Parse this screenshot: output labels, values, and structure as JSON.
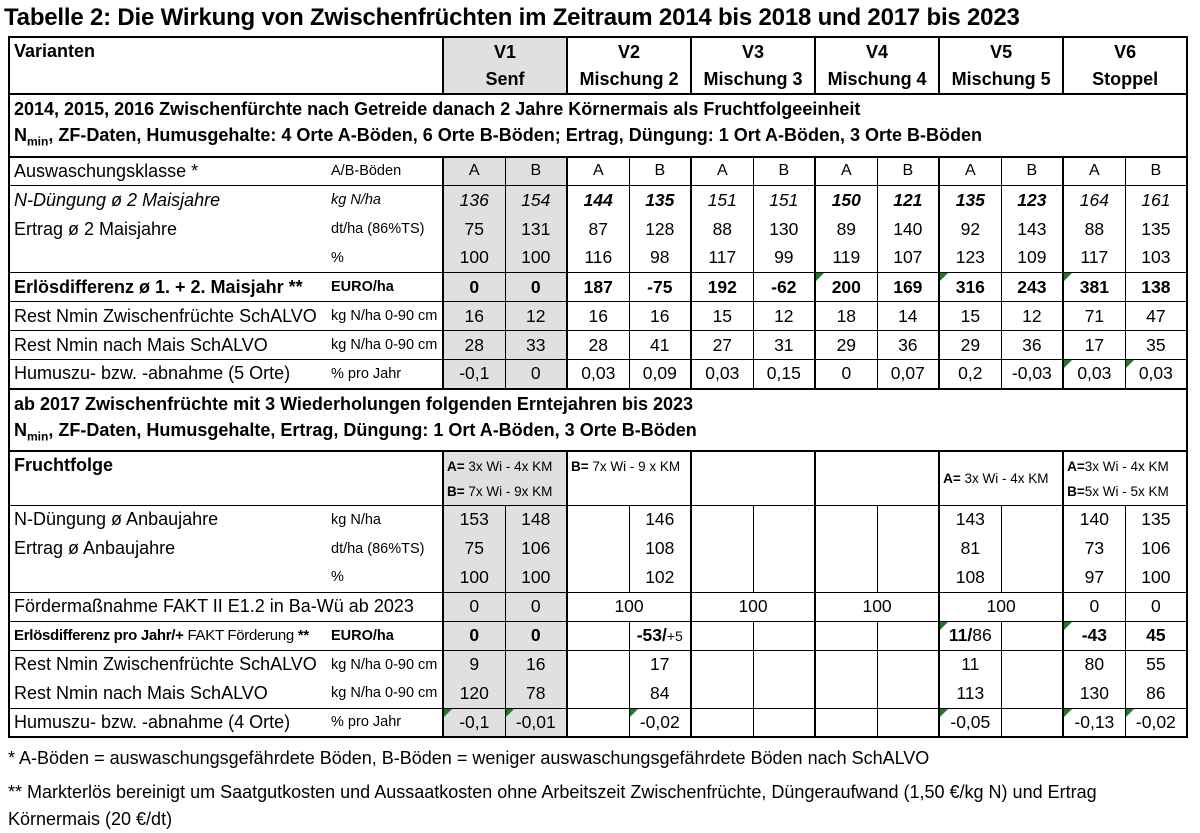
{
  "title": "Tabelle 2: Die Wirkung von Zwischenfrüchten im Zeitraum 2014 bis 2018 und 2017 bis 2023",
  "colors": {
    "shade": "#e0e0e0",
    "flag_green": "#1e7b1e",
    "border": "#000000"
  },
  "header": {
    "varianten_label": "Varianten",
    "variants": [
      {
        "code": "V1",
        "name": "Senf",
        "shaded": true
      },
      {
        "code": "V2",
        "name": "Mischung 2"
      },
      {
        "code": "V3",
        "name": "Mischung 3"
      },
      {
        "code": "V4",
        "name": "Mischung 4"
      },
      {
        "code": "V5",
        "name": "Mischung 5"
      },
      {
        "code": "V6",
        "name": "Stoppel"
      }
    ]
  },
  "rows": [
    {
      "type": "section",
      "lines": [
        [
          {
            "t": "2014, 2015, 2016 Zwischenfürchte nach Getreide danach 2 Jahre Körnermais als Fruchtfolgeeinheit"
          }
        ],
        [
          {
            "t": "N"
          },
          {
            "sub": "min"
          },
          {
            "t": ", ZF-Daten, Humusgehalte: 4 Orte A-Böden, 6 Orte B-Böden;  Ertrag, Düngung: 1 Ort A-Böden, 3 Orte B-Böden"
          }
        ]
      ]
    },
    {
      "type": "ab",
      "label": "Auswaschungsklasse *",
      "unit": "A/B-Böden",
      "letters": [
        "A",
        "B",
        "A",
        "B",
        "A",
        "B",
        "A",
        "B",
        "A",
        "B",
        "A",
        "B"
      ]
    },
    {
      "type": "data",
      "group": "start",
      "style": "italic",
      "label": "N-Düngung ø 2 Maisjahre",
      "unit": "kg N/ha",
      "cells": [
        "136",
        "154",
        {
          "v": "144",
          "b": 1
        },
        {
          "v": "135",
          "b": 1
        },
        "151",
        "151",
        {
          "v": "150",
          "b": 1
        },
        {
          "v": "121",
          "b": 1
        },
        {
          "v": "135",
          "b": 1
        },
        {
          "v": "123",
          "b": 1
        },
        "164",
        "161"
      ]
    },
    {
      "type": "data",
      "group": "mid",
      "label": "Ertrag ø 2 Maisjahre",
      "unit": "dt/ha (86%TS)",
      "cells": [
        "75",
        "131",
        "87",
        "128",
        "88",
        "130",
        "89",
        "140",
        "92",
        "143",
        "88",
        "135"
      ]
    },
    {
      "type": "data",
      "group": "end",
      "label": "",
      "unit": "%",
      "cells": [
        "100",
        "100",
        "116",
        "98",
        "117",
        "99",
        "119",
        "107",
        "123",
        "109",
        "117",
        "103"
      ]
    },
    {
      "type": "data",
      "style": "bold",
      "label": "Erlösdifferenz  ø 1. + 2. Maisjahr **",
      "unit": "EURO/ha",
      "cells": [
        "0",
        "0",
        "187",
        "-75",
        "192",
        "-62",
        {
          "v": "200",
          "flag": 1
        },
        "169",
        {
          "v": "316",
          "flag": 1
        },
        "243",
        {
          "v": "381",
          "flag": 1
        },
        "138"
      ]
    },
    {
      "type": "data",
      "label": "Rest Nmin Zwischenfrüchte SchALVO",
      "unit": "kg N/ha 0-90 cm",
      "cells": [
        "16",
        "12",
        "16",
        "16",
        "15",
        "12",
        "18",
        "14",
        "15",
        "12",
        "71",
        "47"
      ]
    },
    {
      "type": "data",
      "label": "Rest Nmin nach Mais SchALVO",
      "unit": "kg N/ha 0-90 cm",
      "cells": [
        "28",
        "33",
        "28",
        "41",
        "27",
        "31",
        "29",
        "36",
        "29",
        "36",
        "17",
        "35"
      ]
    },
    {
      "type": "data",
      "label": "Humuszu- bzw. -abnahme (5 Orte)",
      "unit": "% pro Jahr",
      "cells": [
        "-0,1",
        "0",
        "0,03",
        "0,09",
        "0,03",
        "0,15",
        "0",
        "0,07",
        "0,2",
        "-0,03",
        {
          "v": "0,03",
          "flag": 1
        },
        {
          "v": "0,03",
          "flag": 1
        }
      ]
    },
    {
      "type": "section",
      "lines": [
        [
          {
            "t": "ab 2017 Zwischenfrüchte mit 3 Wiederholungen folgenden Erntejahren bis 2023"
          }
        ],
        [
          {
            "t": "N"
          },
          {
            "sub": "min"
          },
          {
            "t": ", ZF-Daten, Humusgehalte, Ertrag, Düngung: 1 Ort A-Böden, 3 Orte B-Böden"
          }
        ]
      ]
    },
    {
      "type": "fruchtfolge",
      "label": "Fruchtfolge",
      "cells": [
        {
          "shaded": true,
          "lines": [
            [
              {
                "b": "A="
              },
              {
                "t": " 3x Wi - 4x KM"
              }
            ],
            [
              {
                "b": "B="
              },
              {
                "t": " 7x Wi - 9x KM"
              }
            ]
          ]
        },
        {
          "lines": [
            [
              {
                "b": "B="
              },
              {
                "t": " 7x Wi - 9 x KM"
              }
            ]
          ]
        },
        {
          "lines": []
        },
        {
          "lines": []
        },
        {
          "valign": "mid",
          "lines": [
            [
              {
                "b": "A="
              },
              {
                "t": " 3x Wi - 4x KM"
              }
            ]
          ]
        },
        {
          "lines": [
            [
              {
                "b": "A="
              },
              {
                "t": "3x Wi - 4x KM"
              }
            ],
            [
              {
                "b": "B="
              },
              {
                "t": "5x Wi - 5x KM"
              }
            ]
          ]
        }
      ]
    },
    {
      "type": "data",
      "group": "start",
      "label": "N-Düngung ø  Anbaujahre",
      "unit": "kg N/ha",
      "cells": [
        "153",
        "148",
        "",
        "146",
        "",
        "",
        "",
        "",
        "143",
        "",
        "140",
        "135"
      ]
    },
    {
      "type": "data",
      "group": "mid",
      "label": "Ertrag ø  Anbaujahre",
      "unit": "dt/ha (86%TS)",
      "cells": [
        "75",
        "106",
        "",
        "108",
        "",
        "",
        "",
        "",
        "81",
        "",
        "73",
        "106"
      ]
    },
    {
      "type": "data",
      "group": "end",
      "label": "",
      "unit": "%",
      "cells": [
        "100",
        "100",
        "",
        "102",
        "",
        "",
        "",
        "",
        "108",
        "",
        "97",
        "100"
      ]
    },
    {
      "type": "fakt",
      "label": "Fördermaßnahme FAKT II E1.2 in Ba-Wü ab 2023",
      "cells": [
        {
          "v": "0"
        },
        {
          "v": "0"
        },
        {
          "v": "100",
          "span": 2
        },
        {
          "v": "100",
          "span": 2
        },
        {
          "v": "100",
          "span": 2
        },
        {
          "v": "100",
          "span": 2
        },
        {
          "v": "0"
        },
        {
          "v": "0"
        }
      ]
    },
    {
      "type": "data",
      "style": "bold",
      "label_small": true,
      "label_parts": [
        {
          "b": "Erlösdifferenz pro Jahr/+ "
        },
        {
          "t": "FAKT Förderung ",
          "r": 1
        },
        {
          "b": "**"
        }
      ],
      "unit": "EURO/ha",
      "cells": [
        "0",
        "0",
        "",
        {
          "parts": [
            {
              "b": "-53/"
            },
            {
              "t": "+5",
              "r": 1,
              "sm": 1
            }
          ]
        },
        "",
        "",
        "",
        "",
        {
          "parts": [
            {
              "b": "11/"
            },
            {
              "t": "86",
              "r": 1
            }
          ],
          "flag": 1
        },
        "",
        {
          "v": "-43",
          "flag": 1
        },
        "45"
      ]
    },
    {
      "type": "data",
      "group": "start",
      "label": "Rest Nmin Zwischenfrüchte SchALVO",
      "unit": "kg N/ha 0-90 cm",
      "cells": [
        "9",
        "16",
        "",
        "17",
        "",
        "",
        "",
        "",
        "11",
        "",
        "80",
        "55"
      ]
    },
    {
      "type": "data",
      "group": "end",
      "label": "Rest Nmin nach Mais SchALVO",
      "unit": "kg N/ha 0-90 cm",
      "cells": [
        "120",
        "78",
        "",
        "84",
        "",
        "",
        "",
        "",
        "113",
        "",
        "130",
        "86"
      ]
    },
    {
      "type": "data",
      "label": "Humuszu- bzw. -abnahme (4 Orte)",
      "unit": "% pro Jahr",
      "cells": [
        {
          "v": "-0,1",
          "flag": 1
        },
        {
          "v": "-0,01",
          "flag": 1
        },
        "",
        {
          "v": "-0,02",
          "flag": 1
        },
        "",
        "",
        "",
        "",
        {
          "v": "-0,05",
          "flag": 1
        },
        "",
        {
          "v": "-0,13",
          "flag": 1
        },
        {
          "v": "-0,02",
          "flag": 1
        }
      ]
    }
  ],
  "footnotes": [
    "* A-Böden = auswaschungsgefährdete Böden, B-Böden = weniger auswaschungsgefährdete Böden nach SchALVO",
    "** Markterlös bereinigt um Saatgutkosten und Aussaatkosten ohne Arbeitszeit Zwischenfrüchte, Düngeraufwand (1,50 €/kg N) und Ertrag Körnermais (20 €/dt)"
  ]
}
